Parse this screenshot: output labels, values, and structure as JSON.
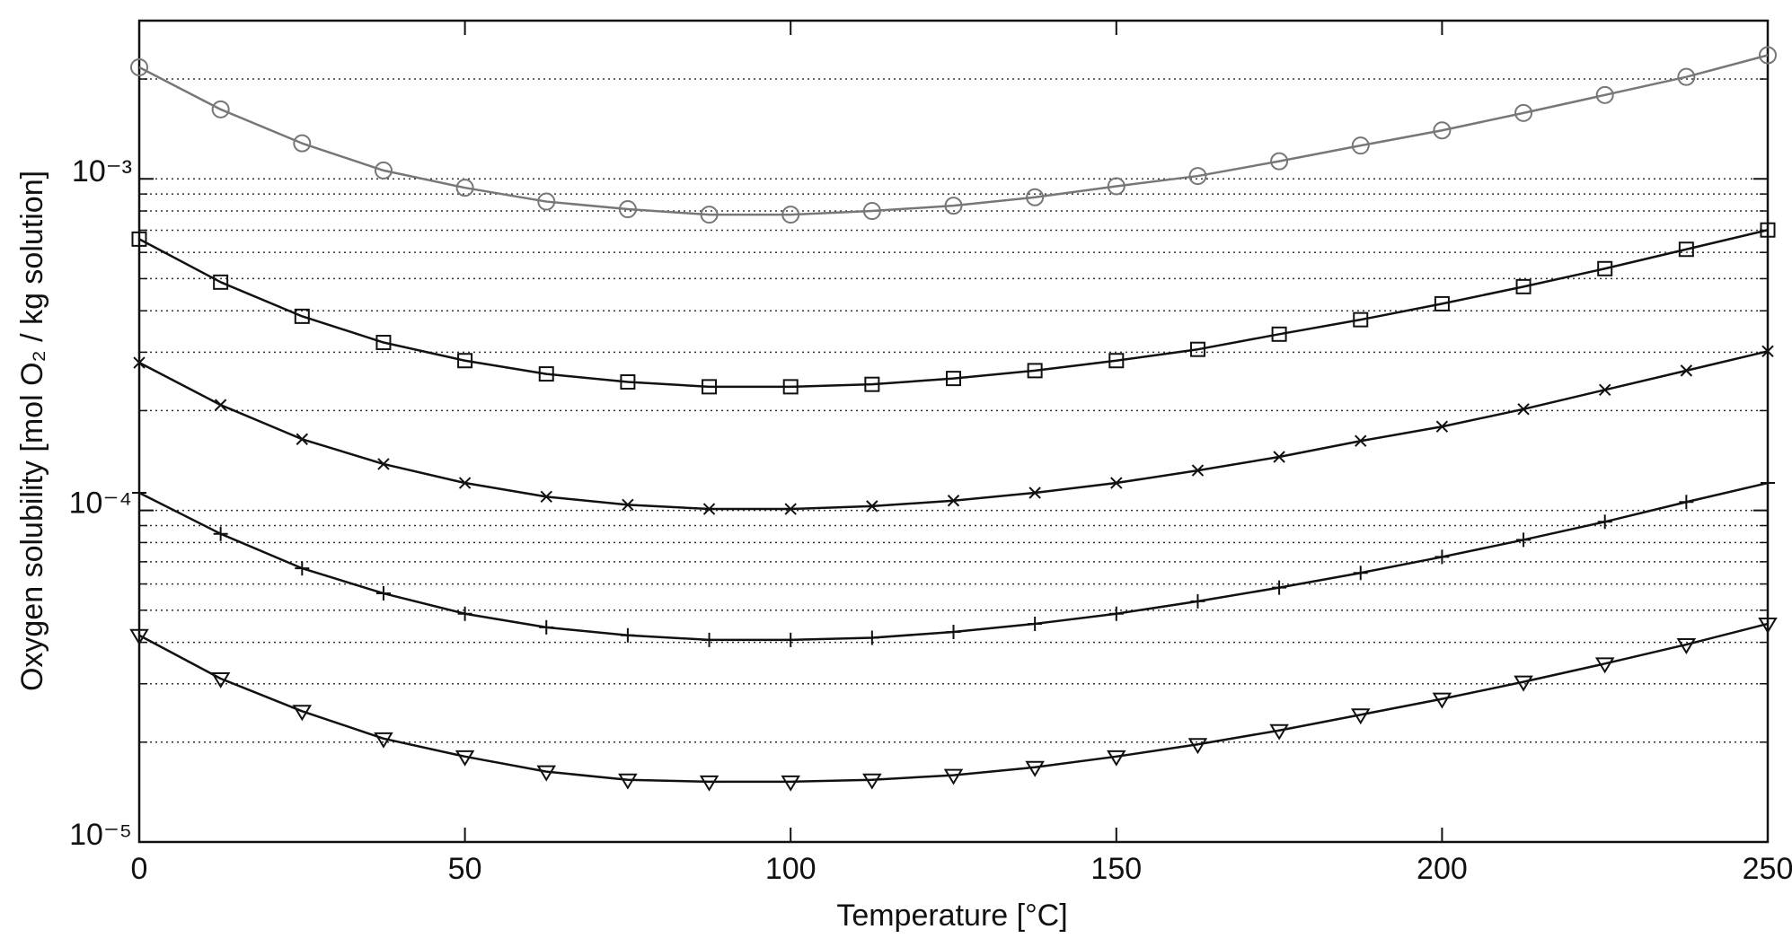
{
  "chart_data": {
    "type": "line",
    "xlabel": "Temperature [°C]",
    "ylabel": "Oxygen solubility [mol O₂ / kg solution]",
    "log_y": true,
    "grid": "dotted-horizontal",
    "x": [
      0,
      12.5,
      25,
      37.5,
      50,
      62.5,
      75,
      87.5,
      100,
      112.5,
      125,
      137.5,
      150,
      162.5,
      175,
      187.5,
      200,
      212.5,
      225,
      237.5,
      250
    ],
    "xlim": [
      0,
      250
    ],
    "xticks": [
      0,
      50,
      100,
      150,
      200,
      250
    ],
    "ylim": [
      1e-05,
      0.003
    ],
    "yticks": [
      {
        "value": 1e-05,
        "label": "10⁻⁵"
      },
      {
        "value": 0.0001,
        "label": "10⁻⁴"
      },
      {
        "value": 0.001,
        "label": "10⁻³"
      }
    ],
    "yminorticks": [
      2e-05,
      3e-05,
      4e-05,
      5e-05,
      6e-05,
      7e-05,
      8e-05,
      9e-05,
      0.0002,
      0.0003,
      0.0004,
      0.0005,
      0.0006,
      0.0007,
      0.0008,
      0.0009,
      0.002,
      0.003
    ],
    "series": [
      {
        "color": "#777777",
        "marker": "circle",
        "values": [
          0.00217,
          0.00162,
          0.00128,
          0.00106,
          0.00094,
          0.000854,
          0.00081,
          0.00078,
          0.00078,
          0.0008,
          0.00083,
          0.00088,
          0.00095,
          0.00102,
          0.00113,
          0.00126,
          0.0014,
          0.00158,
          0.00179,
          0.00203,
          0.00236
        ]
      },
      {
        "color": "#111111",
        "marker": "square",
        "values": [
          0.000658,
          0.000488,
          0.000385,
          0.000321,
          0.000283,
          0.000258,
          0.000244,
          0.000236,
          0.000236,
          0.00024,
          0.00025,
          0.000264,
          0.000283,
          0.000306,
          0.00034,
          0.000376,
          0.00042,
          0.000473,
          0.000536,
          0.000613,
          0.000701
        ]
      },
      {
        "color": "#111111",
        "marker": "x",
        "values": [
          0.000279,
          0.000208,
          0.000164,
          0.000138,
          0.000121,
          0.00011,
          0.000104,
          0.000101,
          0.000101,
          0.000103,
          0.000107,
          0.000113,
          0.000121,
          0.000132,
          0.000145,
          0.000162,
          0.000179,
          0.000202,
          0.000231,
          0.000264,
          0.000302
        ]
      },
      {
        "color": "#111111",
        "marker": "plus",
        "values": [
          0.000113,
          8.5e-05,
          6.69e-05,
          5.62e-05,
          4.88e-05,
          4.44e-05,
          4.2e-05,
          4.07e-05,
          4.07e-05,
          4.13e-05,
          4.3e-05,
          4.55e-05,
          4.88e-05,
          5.32e-05,
          5.85e-05,
          6.48e-05,
          7.24e-05,
          8.15e-05,
          9.24e-05,
          0.000106,
          0.000121
        ]
      },
      {
        "color": "#111111",
        "marker": "triangle-down",
        "values": [
          4.2e-05,
          3.11e-05,
          2.48e-05,
          2.05e-05,
          1.81e-05,
          1.63e-05,
          1.54e-05,
          1.52e-05,
          1.52e-05,
          1.54e-05,
          1.59e-05,
          1.68e-05,
          1.81e-05,
          1.97e-05,
          2.17e-05,
          2.42e-05,
          2.7e-05,
          3.04e-05,
          3.45e-05,
          3.94e-05,
          4.55e-05
        ]
      }
    ]
  }
}
